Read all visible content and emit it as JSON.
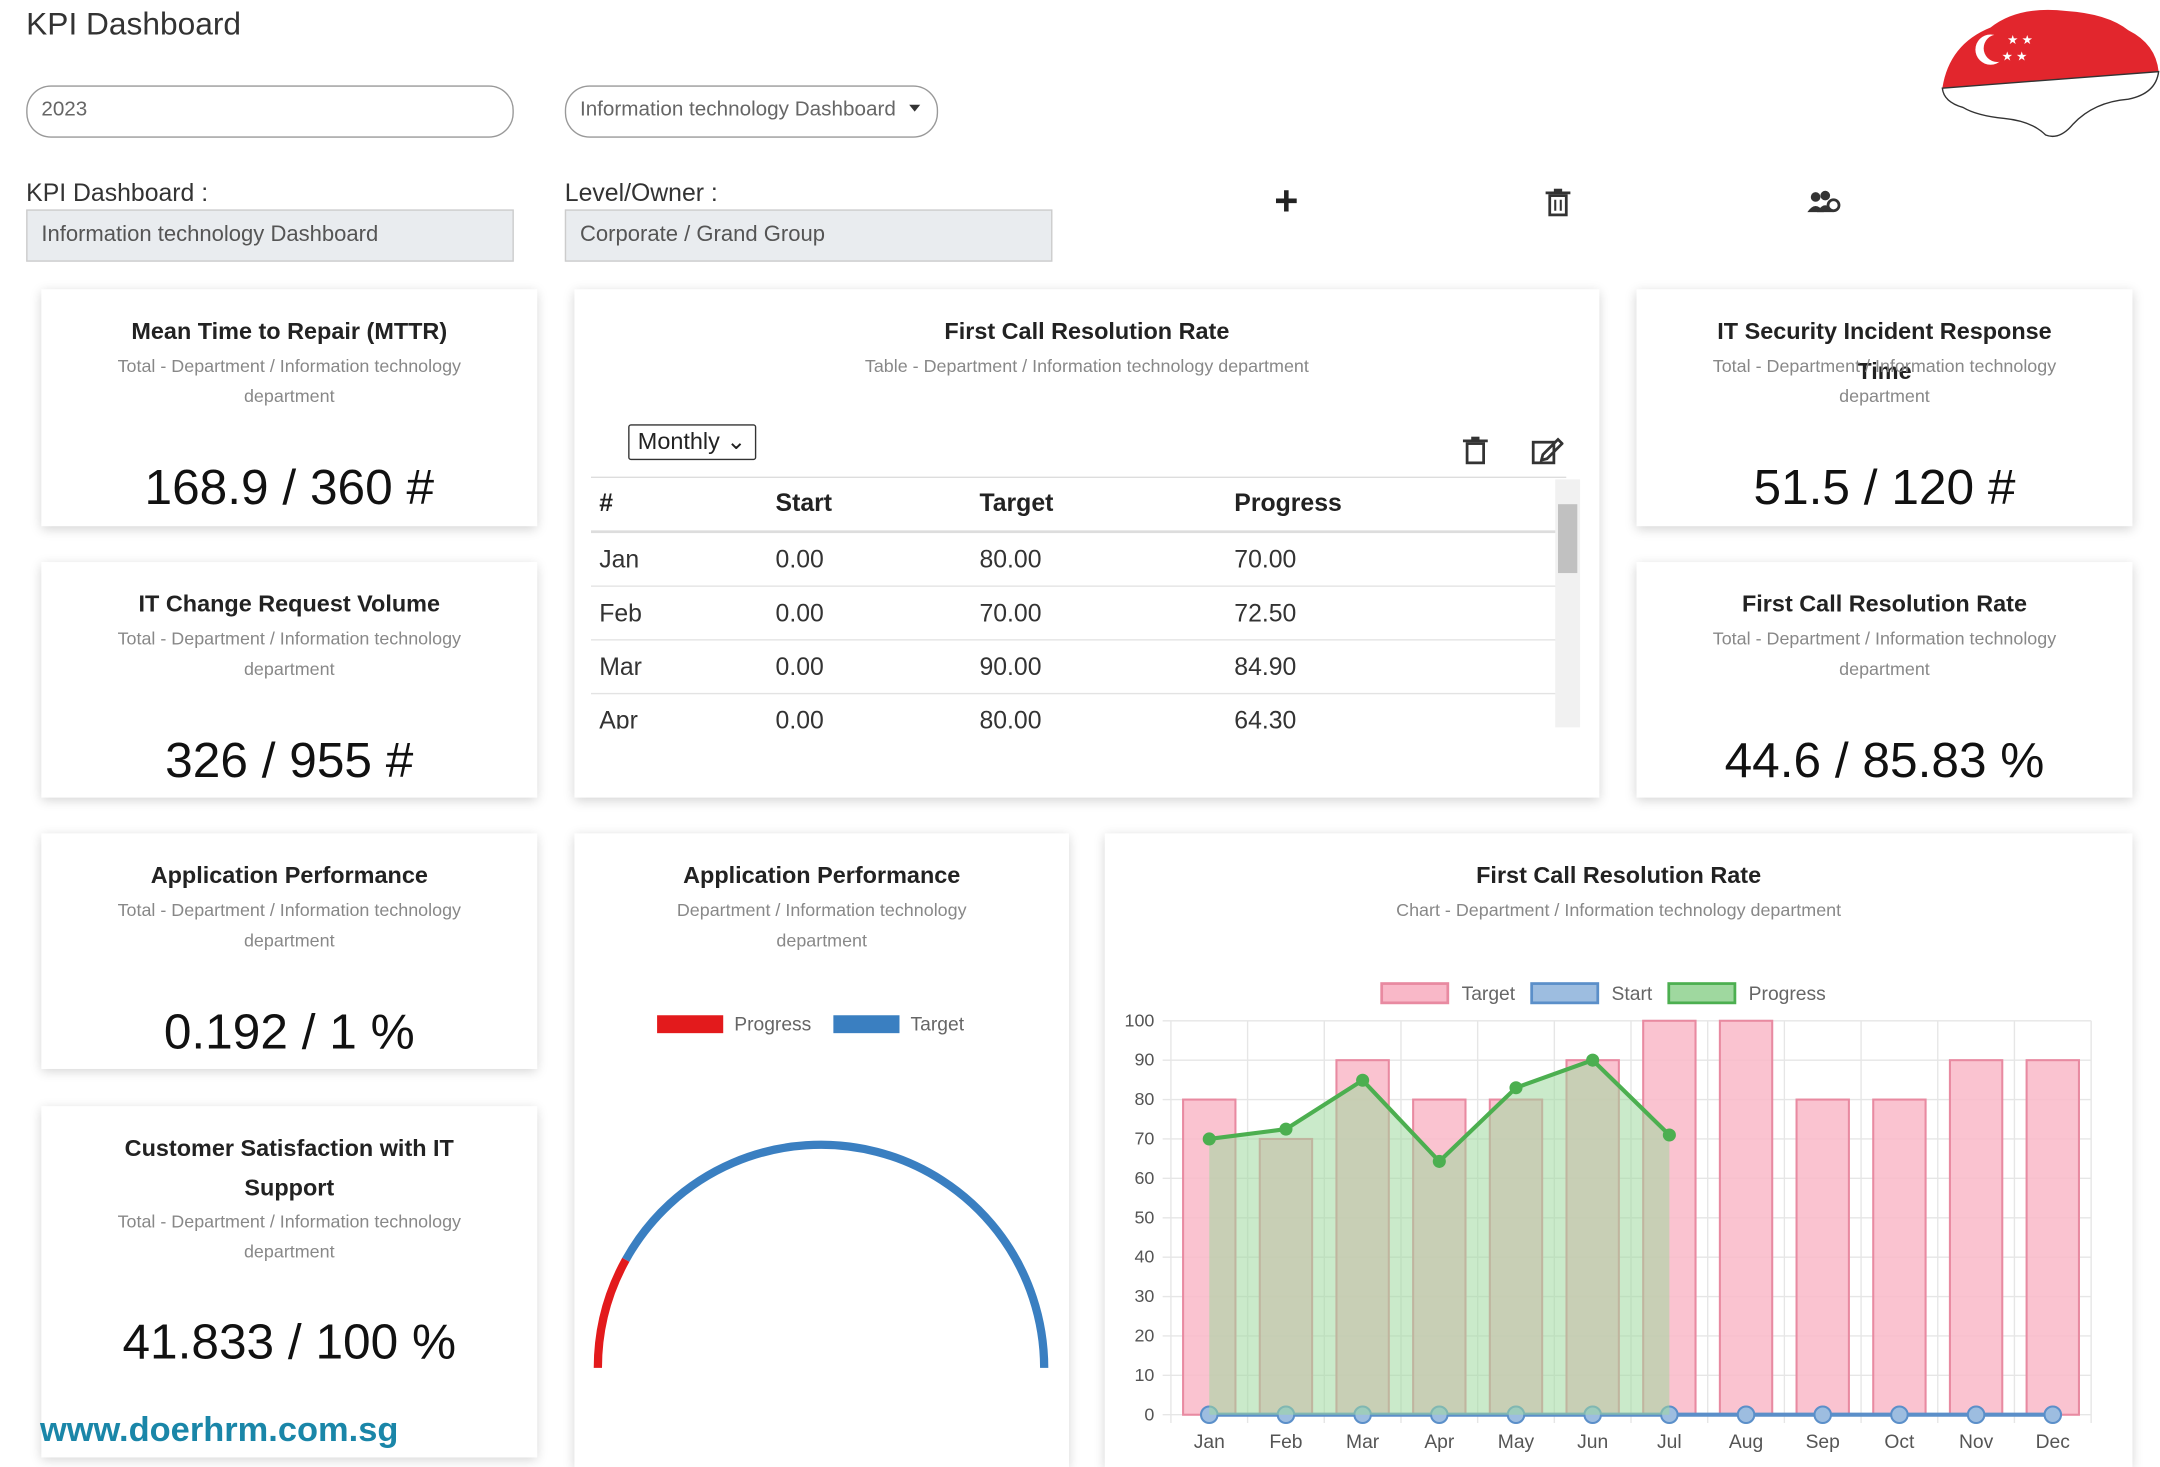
{
  "header": {
    "title": "KPI Dashboard"
  },
  "filters": {
    "year": "2023",
    "dashboard": "Information technology Dashboard"
  },
  "info": {
    "dashboard_label": "KPI Dashboard :",
    "dashboard_value": "Information technology Dashboard",
    "owner_label": "Level/Owner :",
    "owner_value": "Corporate / Grand Group"
  },
  "cards": [
    {
      "title": "Mean Time to Repair (MTTR)",
      "subtitle": "Total - Department / Information technology department",
      "value": "168.9 / 360 #"
    },
    {
      "title": "IT Change Request Volume",
      "subtitle": "Total - Department / Information technology department",
      "value": "326 / 955 #"
    },
    {
      "title": "Application Performance",
      "subtitle": "Total - Department / Information technology department",
      "value": "0.192 / 1 %"
    },
    {
      "title": "Customer Satisfaction with IT Support",
      "subtitle": "Total - Department / Information technology department",
      "value": "41.833 / 100 %"
    },
    {
      "title": "IT Security Incident Response Time",
      "subtitle": "Total - Department / Information technology department",
      "value": "51.5 / 120 #"
    },
    {
      "title": "First Call Resolution Rate",
      "subtitle": "Total - Department / Information technology department",
      "value": "44.6 / 85.83 %"
    }
  ],
  "table": {
    "title": "First Call Resolution Rate",
    "subtitle": "Table - Department / Information technology department",
    "period": "Monthly",
    "columns": [
      "#",
      "Start",
      "Target",
      "Progress"
    ],
    "rows": [
      [
        "Jan",
        "0.00",
        "80.00",
        "70.00"
      ],
      [
        "Feb",
        "0.00",
        "70.00",
        "72.50"
      ],
      [
        "Mar",
        "0.00",
        "90.00",
        "84.90"
      ],
      [
        "Apr",
        "0.00",
        "80.00",
        "64.30"
      ]
    ]
  },
  "gauge": {
    "title": "Application Performance",
    "subtitle": "Department / Information technology department",
    "series": [
      {
        "name": "Progress",
        "color": "#e31a1c",
        "value": 0.192
      },
      {
        "name": "Target",
        "color": "#3a7fc1",
        "value": 1
      }
    ]
  },
  "chart_data": {
    "type": "bar",
    "title": "First Call Resolution Rate",
    "subtitle": "Chart - Department / Information technology department",
    "categories": [
      "Jan",
      "Feb",
      "Mar",
      "Apr",
      "May",
      "Jun",
      "Jul",
      "Aug",
      "Sep",
      "Oct",
      "Nov",
      "Dec"
    ],
    "series": [
      {
        "name": "Target",
        "type": "bar",
        "color": "#f9b8c8",
        "border": "#e88aa1",
        "values": [
          80,
          70,
          90,
          80,
          80,
          90,
          100,
          100,
          80,
          80,
          90,
          90
        ]
      },
      {
        "name": "Start",
        "type": "line",
        "color": "#9dbde0",
        "border": "#5b8fc9",
        "values": [
          0,
          0,
          0,
          0,
          0,
          0,
          0,
          0,
          0,
          0,
          0,
          0
        ]
      },
      {
        "name": "Progress",
        "type": "line",
        "fill": true,
        "color": "#9fd89f",
        "border": "#4caf50",
        "values": [
          70,
          72.5,
          84.9,
          64.3,
          83,
          90,
          71,
          null,
          null,
          null,
          null,
          null
        ]
      }
    ],
    "ylim": [
      0,
      100
    ],
    "yticks": [
      0,
      10,
      20,
      30,
      40,
      50,
      60,
      70,
      80,
      90,
      100
    ],
    "grid": true
  },
  "footer": "www.doerhrm.com.sg"
}
